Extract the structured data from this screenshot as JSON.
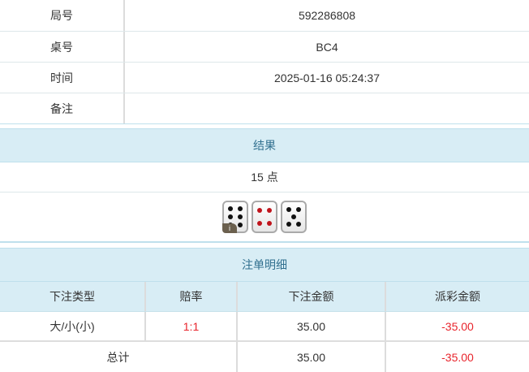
{
  "info": [
    {
      "label": "局号",
      "value": "592286808"
    },
    {
      "label": "桌号",
      "value": "BC4"
    },
    {
      "label": "时间",
      "value": "2025-01-16 05:24:37"
    },
    {
      "label": "备注",
      "value": ""
    }
  ],
  "result": {
    "title": "结果",
    "points": "15 点",
    "dice": [
      6,
      4,
      5
    ],
    "info_badge": "i"
  },
  "bets": {
    "title": "注单明细",
    "columns": [
      "下注类型",
      "赔率",
      "下注金额",
      "派彩金额"
    ],
    "rows": [
      {
        "type": "大/小(小)",
        "odds": "1:1",
        "amount": "35.00",
        "payout": "-35.00"
      }
    ],
    "total": {
      "label": "总计",
      "amount": "35.00",
      "payout": "-35.00"
    }
  },
  "colors": {
    "header_bg": "#d8edf5",
    "header_text": "#31708f",
    "negative": "#e8242c"
  }
}
